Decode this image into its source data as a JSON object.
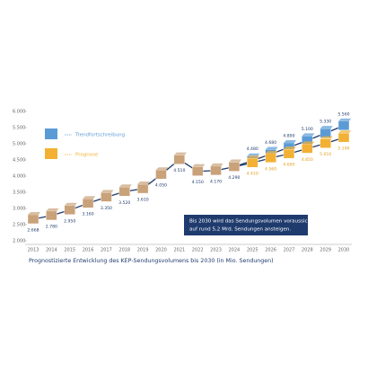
{
  "chart_data": {
    "type": "line",
    "caption": "Prognostizierte Entwicklung des KEP-Sendungsvolumens bis 2030 (in Mio. Sendungen)",
    "annotation": [
      "Bis 2030 wird das Sendungsvolumen voraussichtlich",
      "auf rund 5,2 Mrd. Sendungen ansteigen."
    ],
    "categories": [
      "2013",
      "2014",
      "2015",
      "2016",
      "2017",
      "2018",
      "2019",
      "2020",
      "2021",
      "2022",
      "2023",
      "2024",
      "2025",
      "2026",
      "2027",
      "2028",
      "2029",
      "2030"
    ],
    "ylim": [
      2000,
      6000
    ],
    "yticks": [
      {
        "value": 2000,
        "label": "2.000"
      },
      {
        "value": 2500,
        "label": "2.500"
      },
      {
        "value": 3000,
        "label": "3.000"
      },
      {
        "value": 3500,
        "label": "3.500"
      },
      {
        "value": 4000,
        "label": "4.000"
      },
      {
        "value": 4500,
        "label": "4.500"
      },
      {
        "value": 5000,
        "label": "5.000"
      },
      {
        "value": 5500,
        "label": "5.500"
      },
      {
        "value": 6000,
        "label": "6.000"
      }
    ],
    "series": [
      {
        "color": "#c9a27a",
        "values": [
          2668,
          2780,
          2950,
          3160,
          3350,
          3520,
          3610,
          4050,
          4510,
          4150,
          4170,
          4290,
          null,
          null,
          null,
          null,
          null,
          null
        ],
        "value_labels": [
          "2.668",
          "2.780",
          "2.950",
          "3.160",
          "3.350",
          "3.520",
          "3.610",
          "4.050",
          "4.510",
          "4.150",
          "4.170",
          "4.290",
          null,
          null,
          null,
          null,
          null,
          null
        ]
      },
      {
        "name": "Trendfortschreibung",
        "color": "#5b9bd5",
        "values": [
          null,
          null,
          null,
          null,
          null,
          null,
          null,
          null,
          null,
          null,
          null,
          null,
          4480,
          4680,
          4890,
          5100,
          5330,
          5560
        ],
        "value_labels": [
          null,
          null,
          null,
          null,
          null,
          null,
          null,
          null,
          null,
          null,
          null,
          null,
          "4.480",
          "4.680",
          "4.890",
          "5.100",
          "5.330",
          "5.560"
        ]
      },
      {
        "name": "Prognose",
        "color": "#f2b134",
        "values": [
          null,
          null,
          null,
          null,
          null,
          null,
          null,
          null,
          null,
          null,
          null,
          null,
          4410,
          4560,
          4690,
          4850,
          5010,
          5190
        ],
        "value_labels": [
          null,
          null,
          null,
          null,
          null,
          null,
          null,
          null,
          null,
          null,
          null,
          null,
          "4.410",
          "4.560",
          "4.690",
          "4.850",
          "5.010",
          "5.190"
        ]
      }
    ],
    "line_color": "#1f3b6e"
  }
}
